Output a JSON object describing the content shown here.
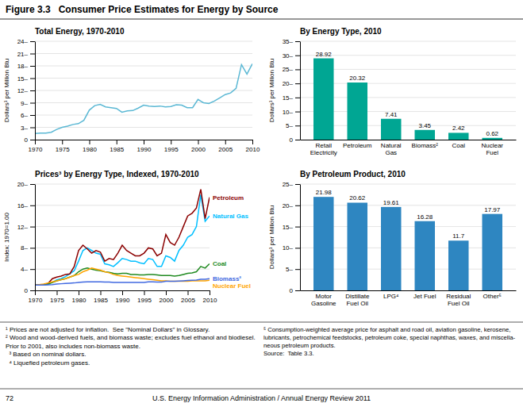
{
  "title": "Figure 3.3   Consumer Price Estimates for Energy by Source",
  "footer": [
    "72",
    "U.S. Energy Information Administration / Annual Energy Review 2011"
  ],
  "footnotes": [
    [
      "¹ Prices are not adjusted for inflation.  See \"Nominal Dollars\" in Glossary.",
      "² Wood and wood-derived fuels, and biomass waste; excludes fuel ethanol and biodiesel.",
      "Prior to 2001, also includes non-biomass waste.",
      "  ³ Based on nominal dollars.",
      "  ⁴ Liquefied petroleum gases."
    ],
    [
      "⁵ Consumption-weighted average price for asphalt and road oil, aviation gasoline, kerosene,",
      "lubricants, petrochemical feedstocks, petroleum coke, special naphthas, waxes, and miscella-",
      "neous petroleum products.",
      "Source:  Table 3.3."
    ]
  ],
  "chart_data": [
    {
      "type": "line",
      "title": "Total Energy, 1970-2010",
      "ylabel": "Dollars¹ per Million Btu",
      "x": [
        1970,
        1971,
        1972,
        1973,
        1974,
        1975,
        1976,
        1977,
        1978,
        1979,
        1980,
        1981,
        1982,
        1983,
        1984,
        1985,
        1986,
        1987,
        1988,
        1989,
        1990,
        1991,
        1992,
        1993,
        1994,
        1995,
        1996,
        1997,
        1998,
        1999,
        2000,
        2001,
        2002,
        2003,
        2004,
        2005,
        2006,
        2007,
        2008,
        2009,
        2010
      ],
      "values": [
        1.5,
        1.6,
        1.6,
        1.8,
        2.5,
        3.0,
        3.3,
        3.7,
        3.9,
        4.7,
        7.2,
        8.3,
        8.6,
        8.0,
        7.8,
        7.6,
        6.7,
        7.0,
        7.1,
        7.7,
        8.4,
        8.2,
        8.1,
        8.2,
        8.0,
        8.1,
        8.5,
        8.4,
        7.8,
        7.8,
        9.8,
        9.0,
        8.8,
        9.4,
        10.2,
        11.0,
        11.4,
        12.5,
        18.3,
        16.0,
        18.5
      ],
      "color": "#5BB8D4",
      "xlim": [
        1970,
        2010
      ],
      "xticks": [
        1970,
        1975,
        1980,
        1985,
        1990,
        1995,
        2000,
        2005,
        2010
      ],
      "ylim": [
        0,
        24
      ],
      "yticks": [
        0,
        {
          "value": 3,
          "label": "3–"
        },
        {
          "value": 6,
          "label": "6–"
        },
        {
          "value": 9,
          "label": "9–"
        },
        {
          "value": 12,
          "label": "12–"
        },
        {
          "value": 15,
          "label": "15–"
        },
        {
          "value": 18,
          "label": "18–"
        },
        {
          "value": 21,
          "label": "21–"
        },
        {
          "value": 24,
          "label": "24–"
        }
      ],
      "grid": true
    },
    {
      "type": "bar",
      "title": "By Energy Type, 2010",
      "ylabel": "Dollars¹ per Million Btu",
      "categories": [
        "Retail\nElectricity",
        "Petroleum",
        "Natural\nGas",
        "Biomass²",
        "Coal",
        "Nuclear\nFuel"
      ],
      "values": [
        28.92,
        20.32,
        7.41,
        3.45,
        2.42,
        0.62
      ],
      "color": "#00A693",
      "ylim": [
        0,
        35
      ],
      "yticks": [
        0,
        {
          "value": 5,
          "label": "5–"
        },
        {
          "value": 10,
          "label": "10–"
        },
        {
          "value": 15,
          "label": "15–"
        },
        {
          "value": 20,
          "label": "20–"
        },
        {
          "value": 25,
          "label": "25–"
        },
        {
          "value": 30,
          "label": "30–"
        },
        {
          "value": 35,
          "label": "35–"
        }
      ],
      "grid": true,
      "data_labels": true
    },
    {
      "type": "line",
      "title": "Prices³ by Energy Type, Indexed, 1970-2010",
      "ylabel": "Index: 1970=1.00",
      "x": [
        1970,
        1971,
        1972,
        1973,
        1974,
        1975,
        1976,
        1977,
        1978,
        1979,
        1980,
        1981,
        1982,
        1983,
        1984,
        1985,
        1986,
        1987,
        1988,
        1989,
        1990,
        1991,
        1992,
        1993,
        1994,
        1995,
        1996,
        1997,
        1998,
        1999,
        2000,
        2001,
        2002,
        2003,
        2004,
        2005,
        2006,
        2007,
        2008,
        2009,
        2010
      ],
      "series": [
        {
          "name": "Natural Gas",
          "color": "#00BFFF",
          "values": [
            1.0,
            1.0,
            1.0,
            1.1,
            1.5,
            2.0,
            2.2,
            2.6,
            3.1,
            3.7,
            5.5,
            7.5,
            8.0,
            7.5,
            7.0,
            6.8,
            5.0,
            4.8,
            4.5,
            5.2,
            6.0,
            5.8,
            5.5,
            5.5,
            5.2,
            5.0,
            6.0,
            5.8,
            4.5,
            4.5,
            6.5,
            6.2,
            5.5,
            7.5,
            8.5,
            10.0,
            10.5,
            12.0,
            18.0,
            13.0,
            14.0
          ]
        },
        {
          "name": "Petroleum",
          "color": "#8B0000",
          "values": [
            1.0,
            1.05,
            1.1,
            1.3,
            2.2,
            2.5,
            2.7,
            3.0,
            3.1,
            4.5,
            7.5,
            8.5,
            7.8,
            7.0,
            7.5,
            7.2,
            5.5,
            6.0,
            5.8,
            7.0,
            8.5,
            7.5,
            7.0,
            6.5,
            6.5,
            7.0,
            8.0,
            7.8,
            6.5,
            7.0,
            10.5,
            9.0,
            8.5,
            10.0,
            12.0,
            14.0,
            14.5,
            15.5,
            19.0,
            13.5,
            17.5
          ]
        },
        {
          "name": "Coal",
          "color": "#228B22",
          "values": [
            1.0,
            1.05,
            1.1,
            1.2,
            1.5,
            1.8,
            2.0,
            2.2,
            2.5,
            2.8,
            3.5,
            4.0,
            4.2,
            4.0,
            3.8,
            3.7,
            3.5,
            3.4,
            3.2,
            3.1,
            3.2,
            3.2,
            3.0,
            3.0,
            2.9,
            2.9,
            3.0,
            3.0,
            2.9,
            2.8,
            2.8,
            2.8,
            2.7,
            2.8,
            3.0,
            3.2,
            3.3,
            3.5,
            4.5,
            4.2,
            5.0
          ]
        },
        {
          "name": "Nuclear Fuel",
          "color": "#FFA500",
          "values": [
            1.0,
            1.1,
            1.2,
            1.4,
            1.6,
            1.8,
            2.0,
            2.2,
            2.5,
            2.8,
            3.0,
            3.5,
            3.8,
            4.2,
            4.0,
            3.8,
            3.5,
            3.3,
            3.0,
            2.8,
            2.7,
            2.6,
            2.5,
            2.4,
            2.3,
            2.2,
            2.1,
            2.0,
            1.9,
            1.8,
            1.8,
            1.7,
            1.7,
            1.7,
            1.7,
            1.7,
            1.8,
            1.8,
            1.8,
            1.8,
            1.9
          ]
        },
        {
          "name": "Biomass²",
          "color": "#4169E1",
          "values": [
            1.0,
            1.0,
            1.0,
            1.05,
            1.1,
            1.2,
            1.25,
            1.3,
            1.35,
            1.4,
            1.5,
            1.55,
            1.6,
            1.6,
            1.6,
            1.6,
            1.55,
            1.55,
            1.5,
            1.5,
            1.5,
            1.5,
            1.5,
            1.5,
            1.5,
            1.5,
            1.6,
            1.6,
            1.55,
            1.55,
            1.7,
            1.7,
            1.7,
            1.75,
            1.8,
            1.85,
            1.9,
            1.95,
            2.1,
            2.1,
            2.2
          ]
        }
      ],
      "xlim": [
        1970,
        2010
      ],
      "xticks": [
        1970,
        1975,
        1980,
        1985,
        1990,
        1995,
        2000,
        2005,
        2010
      ],
      "ylim": [
        0,
        20
      ],
      "yticks": [
        0,
        {
          "value": 4,
          "label": "4–"
        },
        {
          "value": 8,
          "label": "8–"
        },
        {
          "value": 12,
          "label": "12–"
        },
        {
          "value": 16,
          "label": "16–"
        },
        {
          "value": 20,
          "label": "20–"
        }
      ],
      "grid": true
    },
    {
      "type": "bar",
      "title": "By Petroleum Product, 2010",
      "ylabel": "Dollars¹ per Million Btu",
      "categories": [
        "Motor\nGasoline",
        "Distillate\nFuel Oil",
        "LPG⁴",
        "Jet Fuel",
        "Residual\nFuel Oil",
        "Other⁵"
      ],
      "values": [
        21.98,
        20.62,
        19.61,
        16.28,
        11.7,
        17.97
      ],
      "color": "#2E86C1",
      "ylim": [
        0,
        25
      ],
      "yticks": [
        0,
        {
          "value": 5,
          "label": "5–"
        },
        {
          "value": 10,
          "label": "10–"
        },
        {
          "value": 15,
          "label": "15–"
        },
        {
          "value": 20,
          "label": "20–"
        },
        {
          "value": 25,
          "label": "25–"
        }
      ],
      "grid": true,
      "data_labels": true
    }
  ]
}
